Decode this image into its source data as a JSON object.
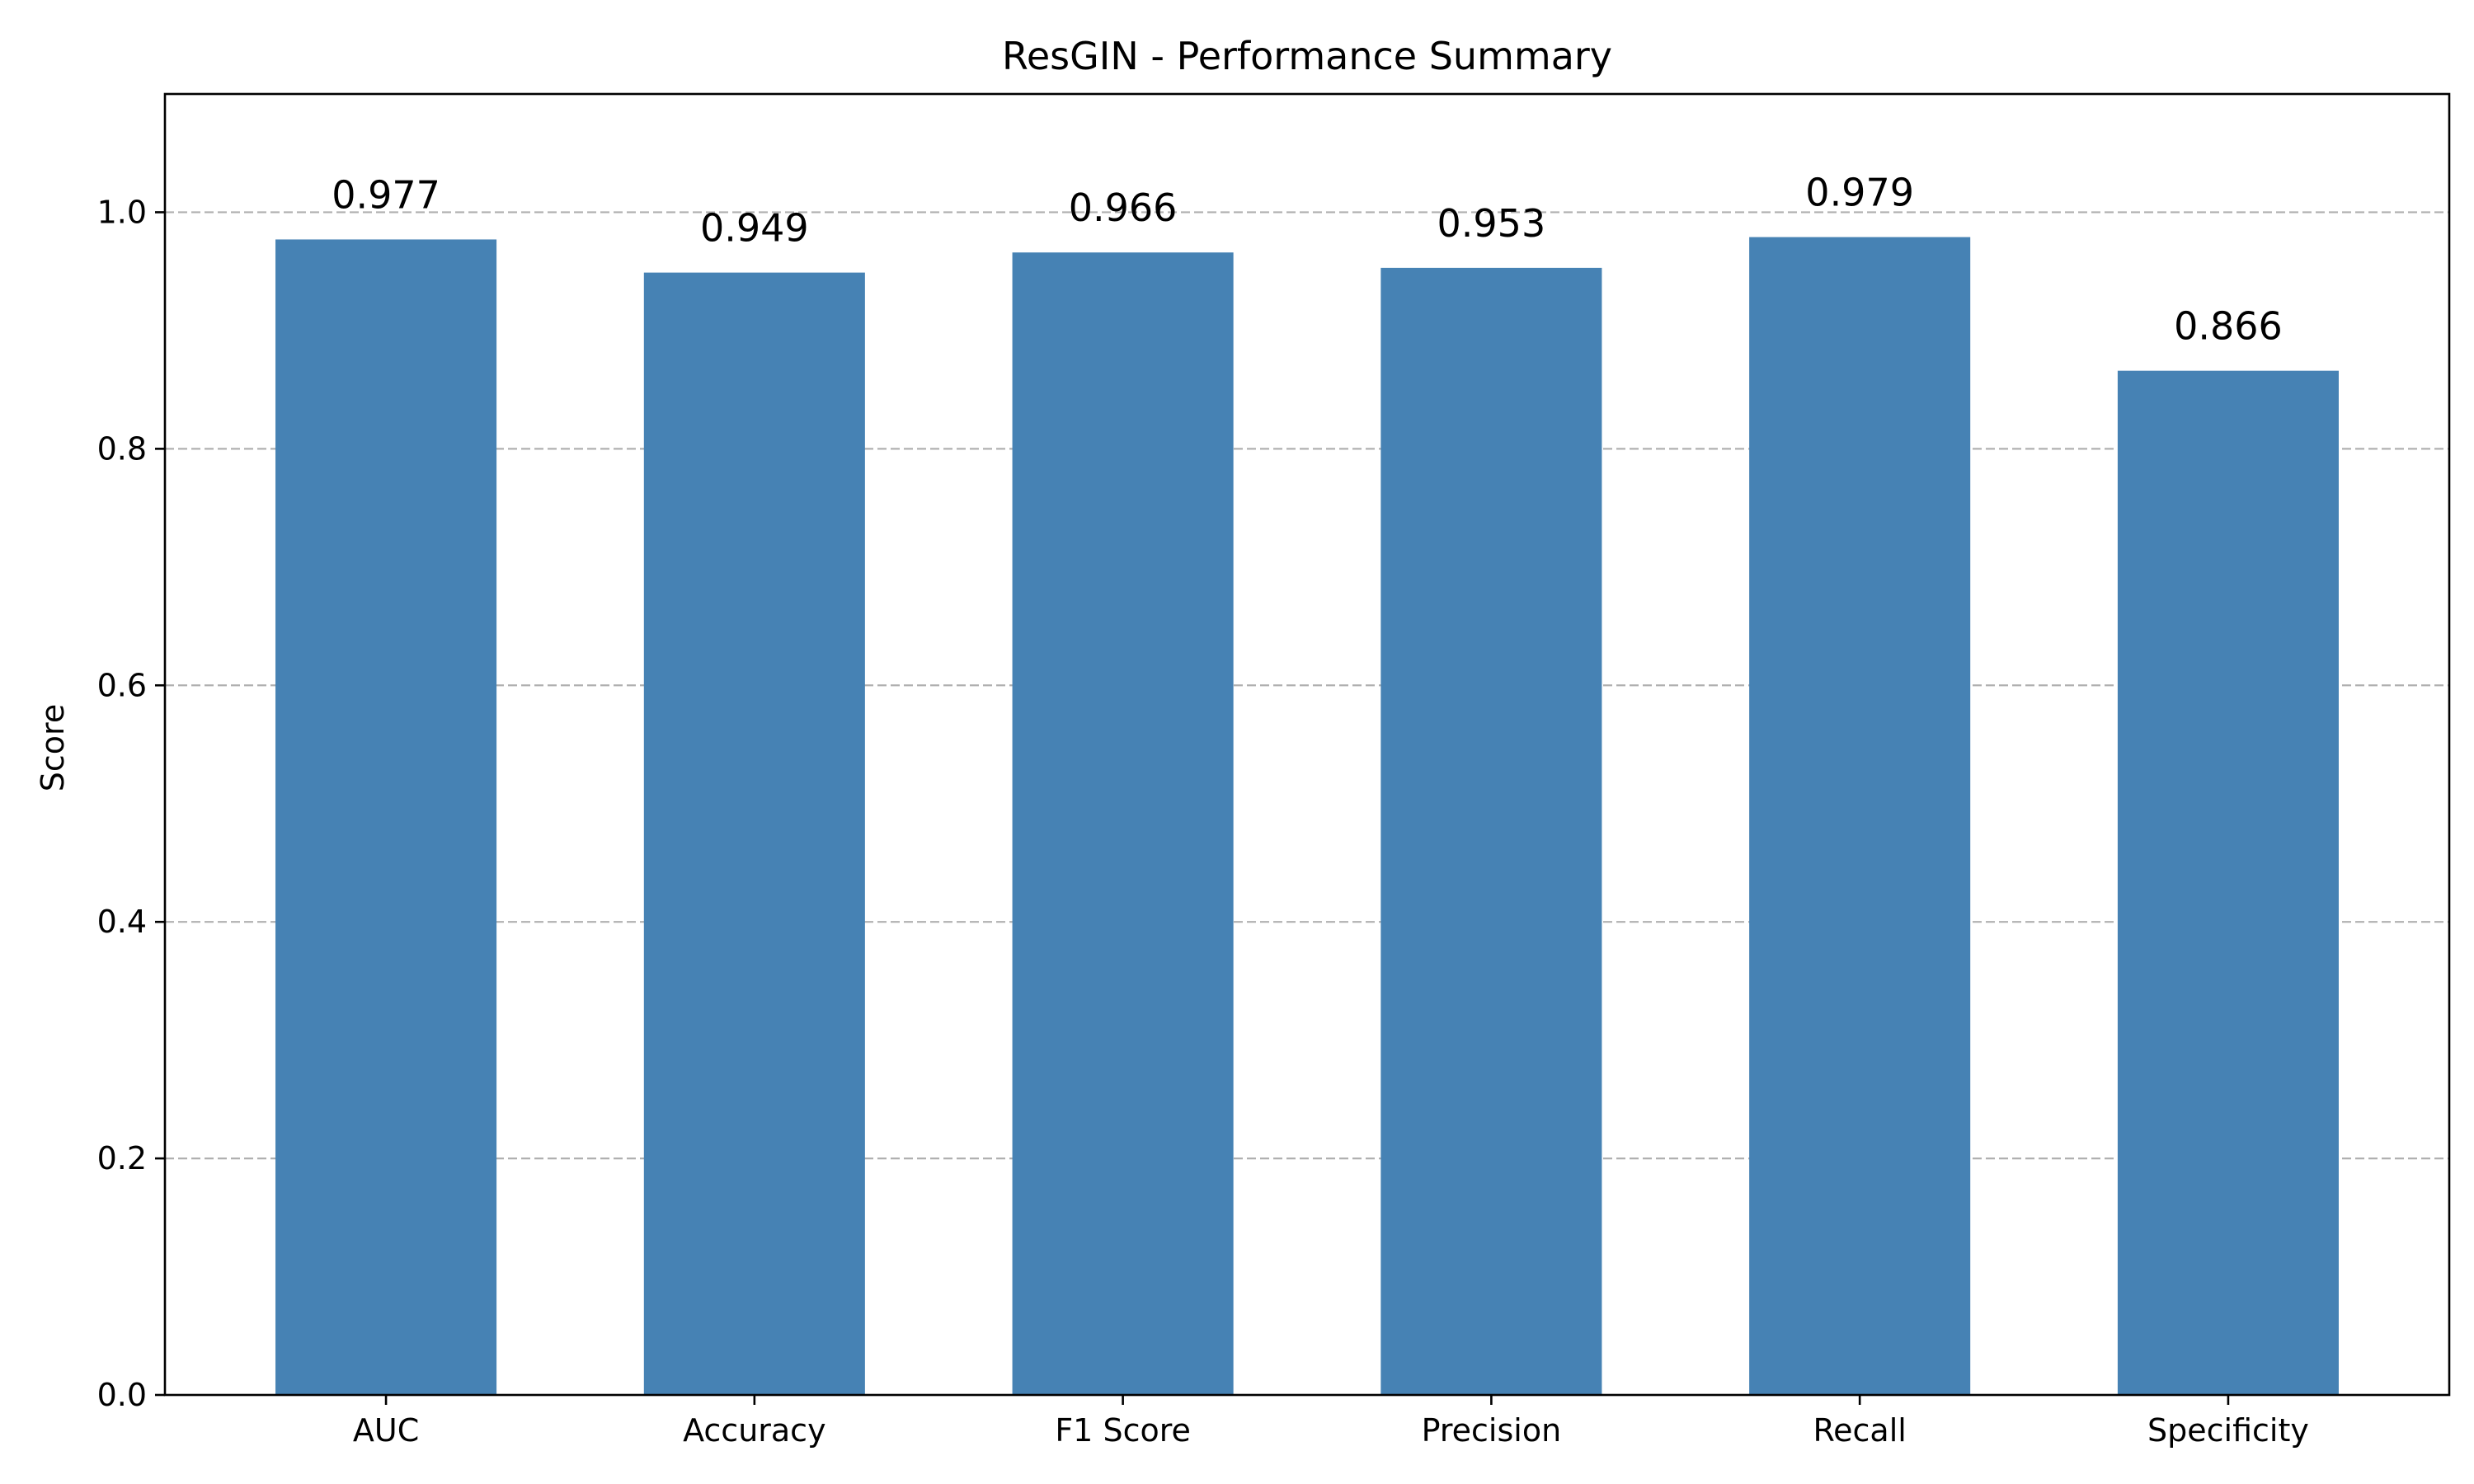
{
  "chart_data": {
    "type": "bar",
    "title": "ResGIN - Performance Summary",
    "xlabel": "",
    "ylabel": "Score",
    "categories": [
      "AUC",
      "Accuracy",
      "F1 Score",
      "Precision",
      "Recall",
      "Specificity"
    ],
    "values": [
      0.977,
      0.949,
      0.966,
      0.953,
      0.979,
      0.866
    ],
    "value_labels": [
      "0.977",
      "0.949",
      "0.966",
      "0.953",
      "0.979",
      "0.866"
    ],
    "ylim": [
      0,
      1.1
    ],
    "yticks": [
      0.0,
      0.2,
      0.4,
      0.6,
      0.8,
      1.0
    ],
    "ytick_labels": [
      "0.0",
      "0.2",
      "0.4",
      "0.6",
      "0.8",
      "1.0"
    ],
    "grid": "y-axis dashed",
    "bar_color": "#4682b4"
  }
}
